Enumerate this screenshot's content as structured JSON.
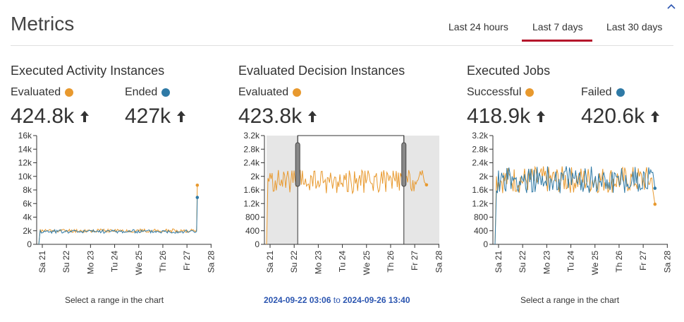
{
  "header": {
    "title": "Metrics"
  },
  "tabs": [
    {
      "label": "Last 24 hours",
      "active": false
    },
    {
      "label": "Last 7 days",
      "active": true
    },
    {
      "label": "Last 30 days",
      "active": false
    }
  ],
  "colors": {
    "orange": "#e8992e",
    "blue": "#2f7aa6",
    "accent": "#b5152b"
  },
  "panels": [
    {
      "title": "Executed Activity Instances",
      "metrics": [
        {
          "label": "Evaluated",
          "value": "424.8k",
          "color": "orange"
        },
        {
          "label": "Ended",
          "value": "427k",
          "color": "blue"
        }
      ],
      "footer": "Select a range in the chart"
    },
    {
      "title": "Evaluated Decision Instances",
      "metrics": [
        {
          "label": "Evaluated",
          "value": "423.8k",
          "color": "orange"
        }
      ],
      "footer_range": {
        "from": "2024-09-22 03:06",
        "to_word": "to",
        "to": "2024-09-26 13:40"
      }
    },
    {
      "title": "Executed Jobs",
      "metrics": [
        {
          "label": "Successful",
          "value": "418.9k",
          "color": "orange"
        },
        {
          "label": "Failed",
          "value": "420.6k",
          "color": "blue"
        }
      ],
      "footer": "Select a range in the chart"
    }
  ],
  "chart_data": [
    {
      "type": "line",
      "x_ticks": [
        "Sa 21",
        "Su 22",
        "Mo 23",
        "Tu 24",
        "We 25",
        "Th 26",
        "Fr 27",
        "Sa 28"
      ],
      "y_ticks": [
        "0",
        "2k",
        "4k",
        "6k",
        "8k",
        "10k",
        "12k",
        "14k",
        "16k"
      ],
      "ylim": [
        0,
        16000
      ],
      "series": [
        {
          "name": "Evaluated",
          "color": "orange",
          "baseline": 2000,
          "noise": 300,
          "end_value": 8700
        },
        {
          "name": "Ended",
          "color": "blue",
          "baseline": 1900,
          "noise": 300,
          "end_value": 6900
        }
      ]
    },
    {
      "type": "line",
      "x_ticks": [
        "Sa 21",
        "Su 22",
        "Mo 23",
        "Tu 24",
        "We 25",
        "Th 26",
        "Fr 27",
        "Sa 28"
      ],
      "y_ticks": [
        "0",
        "400",
        "800",
        "1.2k",
        "1.6k",
        "2k",
        "2.4k",
        "2.8k",
        "3.2k"
      ],
      "ylim": [
        0,
        3200
      ],
      "selection": {
        "from": "2024-09-22 03:06",
        "to": "2024-09-26 13:40"
      },
      "series": [
        {
          "name": "Evaluated",
          "color": "orange",
          "baseline": 1850,
          "noise": 350,
          "end_value": 1750
        }
      ]
    },
    {
      "type": "line",
      "x_ticks": [
        "Sa 21",
        "Su 22",
        "Mo 23",
        "Tu 24",
        "We 25",
        "Th 26",
        "Fr 27",
        "Sa 28"
      ],
      "y_ticks": [
        "0",
        "400",
        "800",
        "1.2k",
        "1.6k",
        "2k",
        "2.4k",
        "2.8k",
        "3.2k"
      ],
      "ylim": [
        0,
        3200
      ],
      "series": [
        {
          "name": "Successful",
          "color": "orange",
          "baseline": 1900,
          "noise": 400,
          "end_value": 1180
        },
        {
          "name": "Failed",
          "color": "blue",
          "baseline": 1900,
          "noise": 400,
          "end_value": 1650
        }
      ]
    }
  ]
}
